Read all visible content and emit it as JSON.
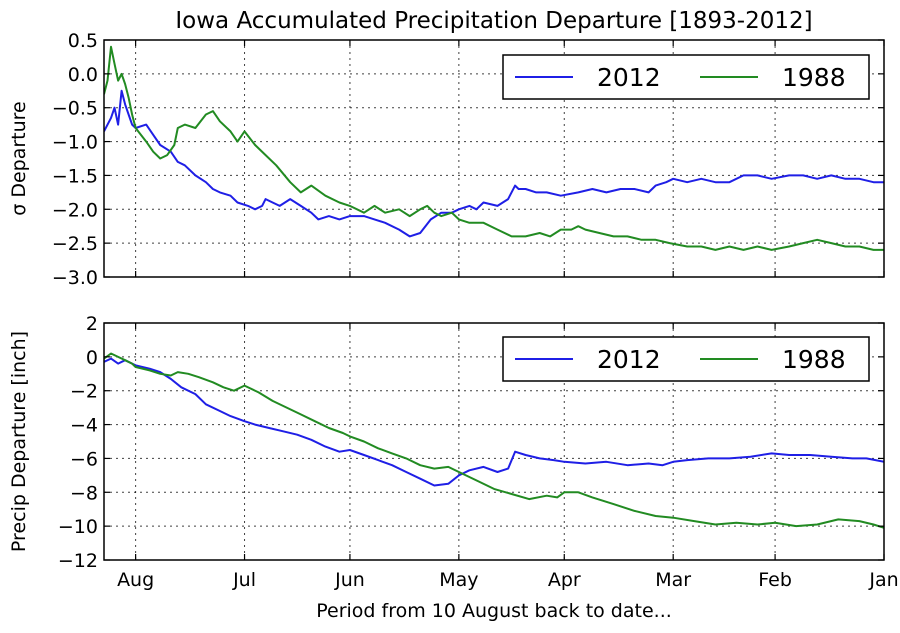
{
  "chart_data": [
    {
      "type": "line",
      "title": "Iowa Accumulated Precipitation Departure [1893-2012]",
      "ylabel": "σ Departure",
      "xlabel": "",
      "ylim": [
        -3.0,
        0.5
      ],
      "yticks": [
        0.5,
        0.0,
        -0.5,
        -1.0,
        -1.5,
        -2.0,
        -2.5,
        -3.0
      ],
      "ytick_labels": [
        "0.5",
        "0.0",
        "−0.5",
        "−1.0",
        "−1.5",
        "−2.0",
        "−2.5",
        "−3.0"
      ],
      "xlim": [
        "10 Aug",
        "1 Jan"
      ],
      "xticks": [
        "1 Aug",
        "1 Jul",
        "1 Jun",
        "1 May",
        "1 Apr",
        "1 Mar",
        "1 Feb",
        "1 Jan"
      ],
      "xtick_labels": [],
      "grid": true,
      "legend": "upper-right, 2 columns",
      "series": [
        {
          "name": "2012",
          "color": "#1f1fe6",
          "x": [
            "10 Aug",
            "8 Aug",
            "7 Aug",
            "6 Aug",
            "5 Aug",
            "4 Aug",
            "3 Aug",
            "2 Aug",
            "1 Aug",
            "29 Jul",
            "27 Jul",
            "25 Jul",
            "22 Jul",
            "20 Jul",
            "18 Jul",
            "15 Jul",
            "12 Jul",
            "10 Jul",
            "8 Jul",
            "5 Jul",
            "3 Jul",
            "30 Jun",
            "28 Jun",
            "26 Jun",
            "25 Jun",
            "23 Jun",
            "21 Jun",
            "18 Jun",
            "15 Jun",
            "12 Jun",
            "10 Jun",
            "7 Jun",
            "4 Jun",
            "1 Jun",
            "28 May",
            "25 May",
            "22 May",
            "18 May",
            "15 May",
            "12 May",
            "9 May",
            "6 May",
            "3 May",
            "1 May",
            "28 Apr",
            "26 Apr",
            "24 Apr",
            "20 Apr",
            "17 Apr",
            "15 Apr",
            "14 Apr",
            "12 Apr",
            "9 Apr",
            "6 Apr",
            "2 Apr",
            "28 Mar",
            "24 Mar",
            "20 Mar",
            "16 Mar",
            "12 Mar",
            "8 Mar",
            "6 Mar",
            "3 Mar",
            "1 Mar",
            "26 Feb",
            "22 Feb",
            "18 Feb",
            "14 Feb",
            "10 Feb",
            "6 Feb",
            "2 Feb",
            "28 Jan",
            "24 Jan",
            "20 Jan",
            "16 Jan",
            "12 Jan",
            "8 Jan",
            "4 Jan",
            "1 Jan"
          ],
          "values": [
            -0.85,
            -0.65,
            -0.5,
            -0.75,
            -0.25,
            -0.45,
            -0.6,
            -0.75,
            -0.8,
            -0.75,
            -0.9,
            -1.05,
            -1.15,
            -1.3,
            -1.35,
            -1.5,
            -1.6,
            -1.7,
            -1.75,
            -1.8,
            -1.9,
            -1.95,
            -2.0,
            -1.95,
            -1.85,
            -1.9,
            -1.95,
            -1.85,
            -1.95,
            -2.05,
            -2.15,
            -2.1,
            -2.15,
            -2.1,
            -2.1,
            -2.15,
            -2.2,
            -2.3,
            -2.4,
            -2.35,
            -2.15,
            -2.05,
            -2.05,
            -2.0,
            -1.95,
            -2.0,
            -1.9,
            -1.95,
            -1.85,
            -1.65,
            -1.7,
            -1.7,
            -1.75,
            -1.75,
            -1.8,
            -1.75,
            -1.7,
            -1.75,
            -1.7,
            -1.7,
            -1.75,
            -1.65,
            -1.6,
            -1.55,
            -1.6,
            -1.55,
            -1.6,
            -1.6,
            -1.5,
            -1.5,
            -1.55,
            -1.5,
            -1.5,
            -1.55,
            -1.5,
            -1.55,
            -1.55,
            -1.6,
            -1.6
          ]
        },
        {
          "name": "1988",
          "color": "#228b22",
          "x": [
            "10 Aug",
            "9 Aug",
            "8 Aug",
            "7 Aug",
            "6 Aug",
            "5 Aug",
            "4 Aug",
            "3 Aug",
            "2 Aug",
            "1 Aug",
            "29 Jul",
            "27 Jul",
            "25 Jul",
            "23 Jul",
            "21 Jul",
            "20 Jul",
            "18 Jul",
            "15 Jul",
            "12 Jul",
            "10 Jul",
            "8 Jul",
            "5 Jul",
            "3 Jul",
            "1 Jul",
            "28 Jun",
            "25 Jun",
            "22 Jun",
            "18 Jun",
            "15 Jun",
            "12 Jun",
            "8 Jun",
            "4 Jun",
            "1 Jun",
            "28 May",
            "25 May",
            "22 May",
            "18 May",
            "15 May",
            "12 May",
            "10 May",
            "8 May",
            "6 May",
            "3 May",
            "1 May",
            "28 Apr",
            "24 Apr",
            "20 Apr",
            "16 Apr",
            "12 Apr",
            "8 Apr",
            "5 Apr",
            "2 Apr",
            "30 Mar",
            "28 Mar",
            "26 Mar",
            "22 Mar",
            "18 Mar",
            "14 Mar",
            "10 Mar",
            "6 Mar",
            "2 Mar",
            "26 Feb",
            "22 Feb",
            "18 Feb",
            "14 Feb",
            "10 Feb",
            "6 Feb",
            "2 Feb",
            "28 Jan",
            "24 Jan",
            "20 Jan",
            "16 Jan",
            "12 Jan",
            "8 Jan",
            "4 Jan",
            "1 Jan"
          ],
          "values": [
            -0.3,
            -0.1,
            0.4,
            0.15,
            -0.1,
            0.0,
            -0.15,
            -0.35,
            -0.6,
            -0.8,
            -1.0,
            -1.15,
            -1.25,
            -1.2,
            -1.05,
            -0.8,
            -0.75,
            -0.8,
            -0.6,
            -0.55,
            -0.7,
            -0.85,
            -1.0,
            -0.85,
            -1.05,
            -1.2,
            -1.35,
            -1.6,
            -1.75,
            -1.65,
            -1.8,
            -1.9,
            -1.95,
            -2.05,
            -1.95,
            -2.05,
            -2.0,
            -2.1,
            -2.0,
            -1.95,
            -2.05,
            -2.1,
            -2.05,
            -2.15,
            -2.2,
            -2.2,
            -2.3,
            -2.4,
            -2.4,
            -2.35,
            -2.4,
            -2.3,
            -2.3,
            -2.25,
            -2.3,
            -2.35,
            -2.4,
            -2.4,
            -2.45,
            -2.45,
            -2.5,
            -2.55,
            -2.55,
            -2.6,
            -2.55,
            -2.6,
            -2.55,
            -2.6,
            -2.55,
            -2.5,
            -2.45,
            -2.5,
            -2.55,
            -2.55,
            -2.6,
            -2.6
          ]
        }
      ]
    },
    {
      "type": "line",
      "title": "",
      "ylabel": "Precip Departure [inch]",
      "xlabel": "Period from 10 August back to date...",
      "ylim": [
        -12,
        2
      ],
      "yticks": [
        2,
        0,
        -2,
        -4,
        -6,
        -8,
        -10,
        -12
      ],
      "ytick_labels": [
        "2",
        "0",
        "−2",
        "−4",
        "−6",
        "−8",
        "−10",
        "−12"
      ],
      "xlim": [
        "10 Aug",
        "1 Jan"
      ],
      "xticks": [
        "1 Aug",
        "1 Jul",
        "1 Jun",
        "1 May",
        "1 Apr",
        "1 Mar",
        "1 Feb",
        "1 Jan"
      ],
      "xtick_labels": [
        "Aug",
        "Jul",
        "Jun",
        "May",
        "Apr",
        "Mar",
        "Feb",
        "Jan"
      ],
      "grid": true,
      "legend": "upper-right, 2 columns",
      "series": [
        {
          "name": "2012",
          "color": "#1f1fe6",
          "x": [
            "10 Aug",
            "8 Aug",
            "6 Aug",
            "4 Aug",
            "2 Aug",
            "1 Aug",
            "28 Jul",
            "25 Jul",
            "22 Jul",
            "19 Jul",
            "15 Jul",
            "12 Jul",
            "8 Jul",
            "5 Jul",
            "1 Jul",
            "28 Jun",
            "24 Jun",
            "20 Jun",
            "16 Jun",
            "12 Jun",
            "8 Jun",
            "4 Jun",
            "1 Jun",
            "28 May",
            "24 May",
            "20 May",
            "16 May",
            "12 May",
            "8 May",
            "4 May",
            "1 May",
            "28 Apr",
            "24 Apr",
            "20 Apr",
            "17 Apr",
            "15 Apr",
            "12 Apr",
            "8 Apr",
            "4 Apr",
            "1 Apr",
            "26 Mar",
            "20 Mar",
            "14 Mar",
            "8 Mar",
            "4 Mar",
            "1 Mar",
            "26 Feb",
            "20 Feb",
            "14 Feb",
            "8 Feb",
            "2 Feb",
            "28 Jan",
            "22 Jan",
            "16 Jan",
            "10 Jan",
            "6 Jan",
            "1 Jan"
          ],
          "values": [
            -0.3,
            -0.1,
            -0.4,
            -0.2,
            -0.4,
            -0.5,
            -0.7,
            -0.9,
            -1.3,
            -1.8,
            -2.2,
            -2.8,
            -3.2,
            -3.5,
            -3.8,
            -4.0,
            -4.2,
            -4.4,
            -4.6,
            -4.9,
            -5.3,
            -5.6,
            -5.5,
            -5.8,
            -6.1,
            -6.4,
            -6.8,
            -7.2,
            -7.6,
            -7.5,
            -7.0,
            -6.7,
            -6.5,
            -6.8,
            -6.6,
            -5.6,
            -5.8,
            -6.0,
            -6.1,
            -6.2,
            -6.3,
            -6.2,
            -6.4,
            -6.3,
            -6.4,
            -6.2,
            -6.1,
            -6.0,
            -6.0,
            -5.9,
            -5.7,
            -5.8,
            -5.8,
            -5.9,
            -6.0,
            -6.0,
            -6.2
          ]
        },
        {
          "name": "1988",
          "color": "#228b22",
          "x": [
            "10 Aug",
            "8 Aug",
            "6 Aug",
            "4 Aug",
            "2 Aug",
            "1 Aug",
            "28 Jul",
            "25 Jul",
            "22 Jul",
            "20 Jul",
            "17 Jul",
            "14 Jul",
            "10 Jul",
            "7 Jul",
            "4 Jul",
            "1 Jul",
            "27 Jun",
            "23 Jun",
            "19 Jun",
            "15 Jun",
            "11 Jun",
            "7 Jun",
            "3 Jun",
            "1 Jun",
            "28 May",
            "24 May",
            "20 May",
            "16 May",
            "12 May",
            "8 May",
            "4 May",
            "1 May",
            "26 Apr",
            "21 Apr",
            "16 Apr",
            "11 Apr",
            "6 Apr",
            "3 Apr",
            "1 Apr",
            "28 Mar",
            "24 Mar",
            "18 Mar",
            "12 Mar",
            "6 Mar",
            "1 Mar",
            "24 Feb",
            "18 Feb",
            "12 Feb",
            "6 Feb",
            "1 Feb",
            "26 Jan",
            "20 Jan",
            "14 Jan",
            "8 Jan",
            "4 Jan",
            "1 Jan"
          ],
          "values": [
            -0.1,
            0.2,
            0.0,
            -0.2,
            -0.4,
            -0.6,
            -0.8,
            -1.0,
            -1.1,
            -0.9,
            -1.0,
            -1.2,
            -1.5,
            -1.8,
            -2.0,
            -1.7,
            -2.1,
            -2.6,
            -3.0,
            -3.4,
            -3.8,
            -4.2,
            -4.5,
            -4.7,
            -5.0,
            -5.4,
            -5.7,
            -6.0,
            -6.4,
            -6.6,
            -6.5,
            -6.8,
            -7.3,
            -7.8,
            -8.1,
            -8.4,
            -8.2,
            -8.3,
            -8.0,
            -8.0,
            -8.3,
            -8.7,
            -9.1,
            -9.4,
            -9.5,
            -9.7,
            -9.9,
            -9.8,
            -9.9,
            -9.8,
            -10.0,
            -9.9,
            -9.6,
            -9.7,
            -9.9,
            -10.1
          ]
        }
      ]
    }
  ]
}
